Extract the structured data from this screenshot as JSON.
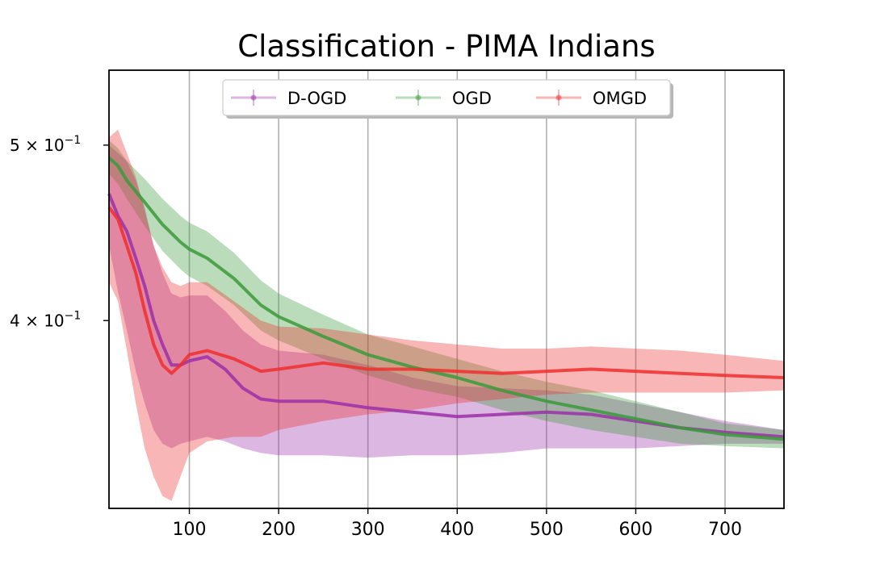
{
  "chart_data": {
    "type": "line",
    "title": "Classification - PIMA Indians",
    "xlabel": "",
    "ylabel": "",
    "x_range": [
      10,
      766
    ],
    "y_range": [
      0.315,
      0.55
    ],
    "y_scale": "log",
    "grid": "vertical",
    "x_ticks": [
      100,
      200,
      300,
      400,
      500,
      600,
      700
    ],
    "x_tick_labels": [
      "100",
      "200",
      "300",
      "400",
      "500",
      "600",
      "700"
    ],
    "y_ticks": [
      {
        "value": 0.5,
        "base": "5 × 10",
        "exp": "−1"
      },
      {
        "value": 0.4,
        "base": "4 × 10",
        "exp": "−1"
      }
    ],
    "legend": {
      "position": "top-center",
      "entries": [
        "D-OGD",
        "OGD",
        "OMGD"
      ]
    },
    "series": [
      {
        "name": "D-OGD",
        "color": "#9b30a8",
        "x": [
          10,
          20,
          30,
          40,
          50,
          60,
          70,
          80,
          90,
          100,
          120,
          140,
          160,
          180,
          200,
          250,
          300,
          350,
          400,
          450,
          500,
          550,
          600,
          650,
          700,
          766
        ],
        "mean": [
          0.47,
          0.457,
          0.448,
          0.433,
          0.418,
          0.4,
          0.388,
          0.378,
          0.378,
          0.38,
          0.382,
          0.376,
          0.367,
          0.362,
          0.361,
          0.361,
          0.358,
          0.356,
          0.354,
          0.355,
          0.356,
          0.355,
          0.352,
          0.349,
          0.347,
          0.345
        ],
        "lower": [
          0.44,
          0.415,
          0.395,
          0.375,
          0.36,
          0.348,
          0.342,
          0.34,
          0.342,
          0.343,
          0.345,
          0.343,
          0.34,
          0.338,
          0.337,
          0.337,
          0.336,
          0.337,
          0.337,
          0.338,
          0.34,
          0.34,
          0.34,
          0.341,
          0.342,
          0.342
        ],
        "upper": [
          0.5,
          0.495,
          0.49,
          0.478,
          0.462,
          0.44,
          0.425,
          0.414,
          0.412,
          0.413,
          0.413,
          0.405,
          0.395,
          0.388,
          0.385,
          0.383,
          0.378,
          0.372,
          0.368,
          0.367,
          0.366,
          0.364,
          0.36,
          0.356,
          0.352,
          0.348
        ]
      },
      {
        "name": "OGD",
        "color": "#3a9a3a",
        "x": [
          10,
          20,
          30,
          50,
          70,
          90,
          100,
          120,
          150,
          180,
          200,
          250,
          300,
          350,
          400,
          450,
          500,
          550,
          600,
          650,
          700,
          766
        ],
        "mean": [
          0.492,
          0.487,
          0.478,
          0.465,
          0.452,
          0.442,
          0.438,
          0.433,
          0.422,
          0.408,
          0.402,
          0.392,
          0.383,
          0.377,
          0.372,
          0.366,
          0.361,
          0.357,
          0.353,
          0.349,
          0.346,
          0.344
        ],
        "lower": [
          0.482,
          0.476,
          0.467,
          0.451,
          0.437,
          0.427,
          0.423,
          0.418,
          0.408,
          0.395,
          0.39,
          0.381,
          0.373,
          0.367,
          0.363,
          0.357,
          0.352,
          0.348,
          0.345,
          0.342,
          0.341,
          0.34
        ],
        "upper": [
          0.503,
          0.498,
          0.49,
          0.479,
          0.467,
          0.457,
          0.453,
          0.448,
          0.436,
          0.421,
          0.414,
          0.403,
          0.393,
          0.387,
          0.381,
          0.375,
          0.37,
          0.366,
          0.361,
          0.356,
          0.351,
          0.348
        ]
      },
      {
        "name": "OMGD",
        "color": "#ee2f2f",
        "x": [
          10,
          20,
          30,
          40,
          50,
          60,
          70,
          80,
          90,
          100,
          120,
          150,
          180,
          200,
          250,
          300,
          350,
          400,
          450,
          500,
          550,
          600,
          650,
          700,
          766
        ],
        "mean": [
          0.462,
          0.455,
          0.44,
          0.425,
          0.405,
          0.388,
          0.378,
          0.374,
          0.378,
          0.383,
          0.385,
          0.381,
          0.375,
          0.376,
          0.379,
          0.376,
          0.376,
          0.375,
          0.374,
          0.375,
          0.376,
          0.375,
          0.374,
          0.373,
          0.372
        ],
        "lower": [
          0.42,
          0.41,
          0.385,
          0.36,
          0.34,
          0.328,
          0.32,
          0.318,
          0.328,
          0.338,
          0.343,
          0.345,
          0.345,
          0.348,
          0.352,
          0.355,
          0.357,
          0.36,
          0.362,
          0.364,
          0.365,
          0.365,
          0.365,
          0.365,
          0.366
        ],
        "upper": [
          0.505,
          0.51,
          0.495,
          0.48,
          0.46,
          0.44,
          0.428,
          0.42,
          0.418,
          0.42,
          0.42,
          0.41,
          0.4,
          0.397,
          0.396,
          0.393,
          0.39,
          0.388,
          0.386,
          0.386,
          0.387,
          0.386,
          0.385,
          0.383,
          0.38
        ]
      }
    ]
  }
}
